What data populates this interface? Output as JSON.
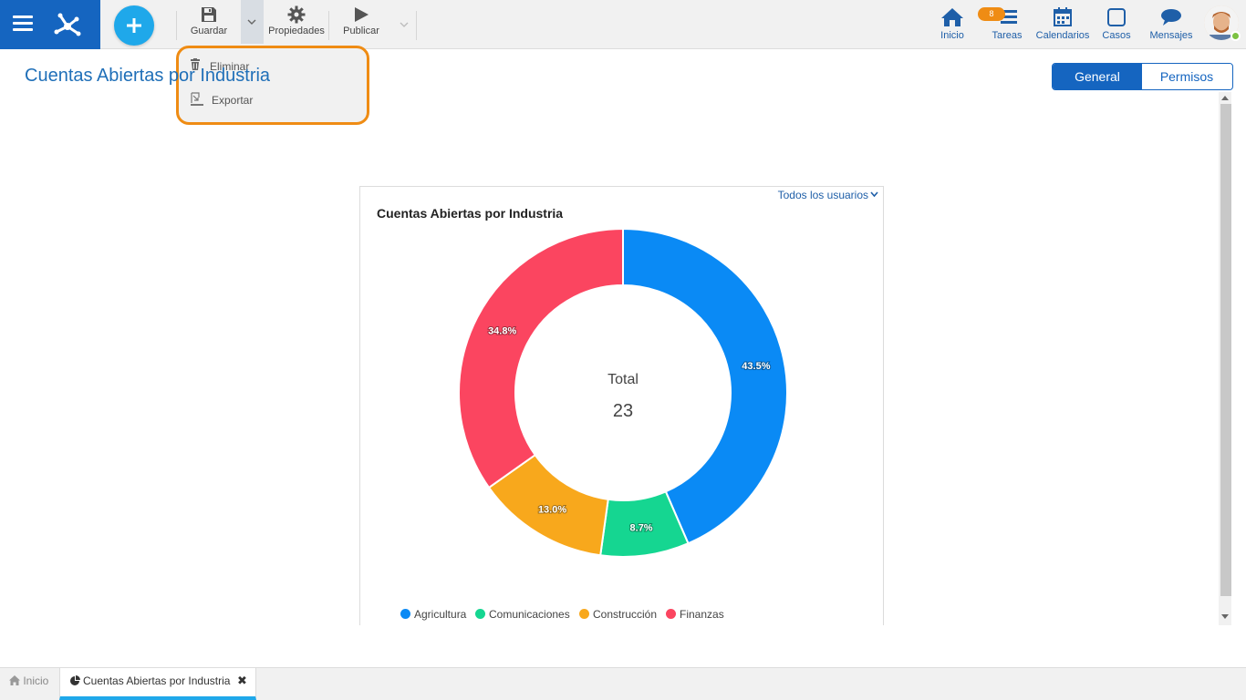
{
  "toolbar": {
    "save_label": "Guardar",
    "properties_label": "Propiedades",
    "publish_label": "Publicar"
  },
  "dropdown": {
    "items": [
      {
        "label": "Eliminar",
        "icon": "trash-icon"
      },
      {
        "label": "Exportar",
        "icon": "export-icon"
      }
    ]
  },
  "nav": {
    "items": [
      {
        "label": "Inicio",
        "icon": "home-icon"
      },
      {
        "label": "Tareas",
        "icon": "tasks-icon"
      },
      {
        "label": "Calendarios",
        "icon": "calendar-icon"
      },
      {
        "label": "Casos",
        "icon": "cases-icon"
      },
      {
        "label": "Mensajes",
        "icon": "messages-icon"
      }
    ],
    "tasks_badge": "8"
  },
  "page": {
    "title": "Cuentas Abiertas por Industria"
  },
  "tabs": {
    "general": "General",
    "permisos": "Permisos"
  },
  "card": {
    "users_filter": "Todos los usuarios",
    "center_label": "Total",
    "center_value": "23"
  },
  "chart_data": {
    "type": "pie",
    "title": "Cuentas Abiertas por Industria",
    "donut": true,
    "categories": [
      "Agricultura",
      "Comunicaciones",
      "Construcción",
      "Finanzas"
    ],
    "values": [
      43.5,
      8.7,
      13.0,
      34.8
    ],
    "labels": [
      "43.5%",
      "8.7%",
      "13.0%",
      "34.8%"
    ],
    "colors": [
      "#0a8af5",
      "#15d691",
      "#f8a81c",
      "#fb4560"
    ],
    "legend_position": "bottom"
  },
  "bottom_tabs": {
    "home": "Inicio",
    "doc": "Cuentas Abiertas por Industria"
  },
  "colors": {
    "brand": "#1565c0",
    "accent": "#1fa8ea",
    "highlight": "#ef8c14"
  }
}
